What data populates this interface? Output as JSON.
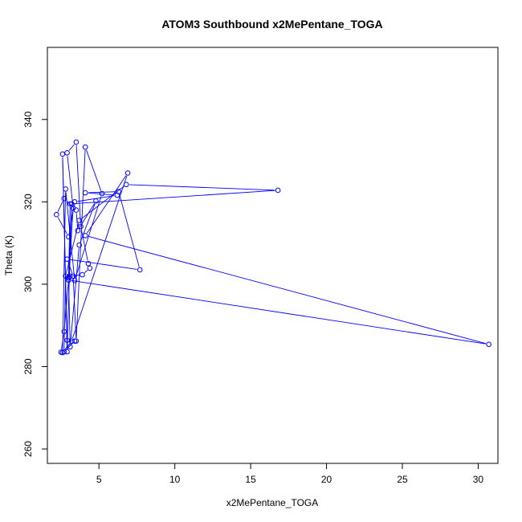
{
  "chart_data": {
    "type": "line",
    "title": "ATOM3 Southbound x2MePentane_TOGA",
    "xlabel": "x2MePentane_TOGA",
    "ylabel": "Theta (K)",
    "xlim": [
      1.6,
      31.3
    ],
    "ylim": [
      256.5,
      357.5
    ],
    "xticks": [
      5,
      10,
      15,
      20,
      25,
      30
    ],
    "xtick_labels": [
      "5",
      "10",
      "15",
      "20",
      "25",
      "30"
    ],
    "yticks": [
      260,
      280,
      300,
      320,
      340
    ],
    "ytick_labels": [
      "260",
      "280",
      "300",
      "320",
      "340"
    ],
    "grid": false,
    "legend": "none",
    "series_color": "#0000ff",
    "series": [
      {
        "x": [
          2.5,
          2.7,
          3.0,
          3.3,
          2.9,
          3.5,
          3.8,
          4.3,
          4.4,
          3.9,
          3.1,
          3.0,
          3.1,
          3.7,
          4.8,
          3.6,
          3.5,
          2.7,
          2.2,
          3.0,
          3.4,
          6.2,
          4.1,
          6.3,
          7.7,
          2.9,
          3.3,
          3.5,
          4.1,
          5.2,
          3.4,
          2.8,
          2.6,
          3.2,
          6.9,
          4.1,
          30.7,
          3.0,
          3.2,
          2.9,
          2.6,
          2.9,
          3.4,
          2.7,
          2.8,
          3.7,
          6.8,
          16.8,
          3.1,
          3.0
        ],
        "y": [
          283.5,
          288.5,
          301.0,
          318.5,
          331.9,
          334.5,
          314.0,
          305.0,
          303.9,
          302.3,
          302.0,
          301.5,
          284.8,
          309.5,
          320.2,
          313.0,
          318.0,
          320.8,
          316.9,
          311.5,
          320.0,
          321.6,
          322.2,
          322.5,
          303.5,
          306.1,
          302.0,
          286.2,
          333.3,
          322.0,
          300.9,
          323.1,
          283.4,
          286.2,
          327.0,
          311.8,
          285.4,
          301.0,
          319.5,
          283.6,
          331.6,
          286.4,
          286.2,
          283.6,
          302.0,
          315.5,
          324.2,
          322.8,
          319.5,
          301.8
        ]
      }
    ]
  }
}
